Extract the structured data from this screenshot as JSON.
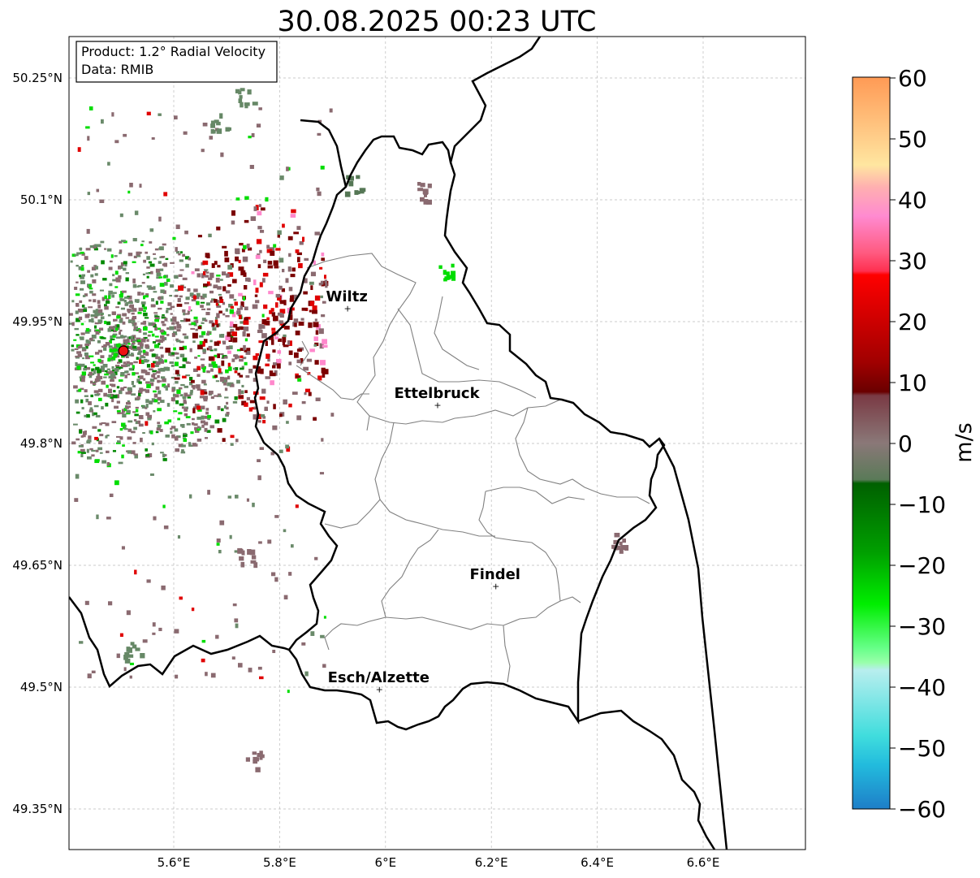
{
  "title": "30.08.2025 00:23 UTC",
  "info": {
    "product": "Product: 1.2° Radial Velocity",
    "data_source": "Data: RMIB"
  },
  "axes": {
    "lon_ticks": [
      "5.6°E",
      "5.8°E",
      "6°E",
      "6.2°E",
      "6.4°E",
      "6.6°E"
    ],
    "lat_ticks": [
      "50.25°N",
      "50.1°N",
      "49.95°N",
      "49.8°N",
      "49.65°N",
      "49.5°N",
      "49.35°N"
    ]
  },
  "places": [
    {
      "name": "Wiltz",
      "lon": 5.93,
      "lat": 49.966
    },
    {
      "name": "Ettelbruck",
      "lon": 6.1,
      "lat": 49.847
    },
    {
      "name": "Findel",
      "lon": 6.21,
      "lat": 49.624
    },
    {
      "name": "Esch/Alzette",
      "lon": 5.99,
      "lat": 49.497
    }
  ],
  "radar_site": {
    "lon": 5.505,
    "lat": 49.914
  },
  "colorbar": {
    "label": "m/s",
    "min": -60,
    "max": 60,
    "ticks": [
      "60",
      "50",
      "40",
      "30",
      "20",
      "10",
      "0",
      "−10",
      "−20",
      "−30",
      "−40",
      "−50",
      "−60"
    ]
  },
  "colors": {
    "outbound_dark": "#7a0000",
    "outbound_red": "#e00000",
    "outbound_pink": "#ff88cc",
    "near_zero_pos": "#8a6a70",
    "near_zero_neg": "#6a8a6a",
    "inbound_green": "#00dd00",
    "inbound_cyan": "#30dddd",
    "border": "#000000",
    "canton": "#808080",
    "grid": "#bbbbbb"
  }
}
